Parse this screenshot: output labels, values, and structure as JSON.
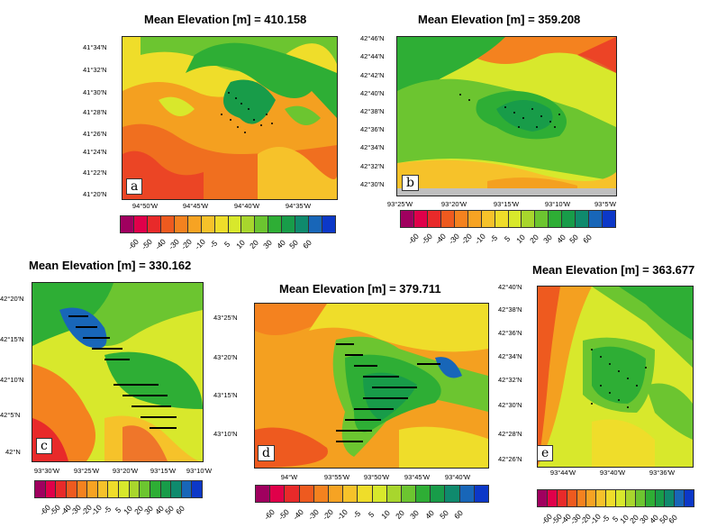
{
  "colorbar": {
    "colors": [
      "#a0005f",
      "#e0004a",
      "#e82a2a",
      "#ee5a1f",
      "#f4821f",
      "#f6a323",
      "#f6c22a",
      "#efdd2a",
      "#d8e82c",
      "#a8d62d",
      "#6cc530",
      "#2eae35",
      "#189c49",
      "#0f8a6d",
      "#1866b8",
      "#0c38c8"
    ],
    "labels": [
      "-60",
      "-50",
      "-40",
      "-30",
      "-20",
      "-10",
      "-5",
      "5",
      "10",
      "20",
      "30",
      "40",
      "50",
      "60"
    ]
  },
  "panels": [
    {
      "id": "a",
      "title": "Mean Elevation [m] = 410.158",
      "label": "a",
      "yticks": [
        "41°34'N",
        "41°32'N",
        "41°30'N",
        "41°28'N",
        "41°26'N",
        "41°24'N",
        "41°22'N",
        "41°20'N"
      ],
      "xticks": [
        "94°50'W",
        "94°45'W",
        "94°40'W",
        "94°35'W"
      ]
    },
    {
      "id": "b",
      "title": "Mean Elevation [m] = 359.208",
      "label": "b",
      "yticks": [
        "42°46'N",
        "42°44'N",
        "42°42'N",
        "42°40'N",
        "42°38'N",
        "42°36'N",
        "42°34'N",
        "42°32'N",
        "42°30'N"
      ],
      "xticks": [
        "93°25'W",
        "93°20'W",
        "93°15'W",
        "93°10'W",
        "93°5'W"
      ]
    },
    {
      "id": "c",
      "title": "Mean Elevation [m] = 330.162",
      "label": "c",
      "yticks": [
        "42°20'N",
        "42°15'N",
        "42°10'N",
        "42°5'N",
        "42°N"
      ],
      "xticks": [
        "93°30'W",
        "93°25'W",
        "93°20'W",
        "93°15'W",
        "93°10'W"
      ]
    },
    {
      "id": "d",
      "title": "Mean Elevation [m] = 379.711",
      "label": "d",
      "yticks": [
        "43°25'N",
        "43°20'N",
        "43°15'N",
        "43°10'N"
      ],
      "xticks": [
        "94°W",
        "93°55'W",
        "93°50'W",
        "93°45'W",
        "93°40'W"
      ]
    },
    {
      "id": "e",
      "title": "Mean Elevation [m] = 363.677",
      "label": "e",
      "yticks": [
        "42°40'N",
        "42°38'N",
        "42°36'N",
        "42°34'N",
        "42°32'N",
        "42°30'N",
        "42°28'N",
        "42°26'N"
      ],
      "xticks": [
        "93°44'W",
        "93°40'W",
        "93°36'W"
      ]
    }
  ]
}
